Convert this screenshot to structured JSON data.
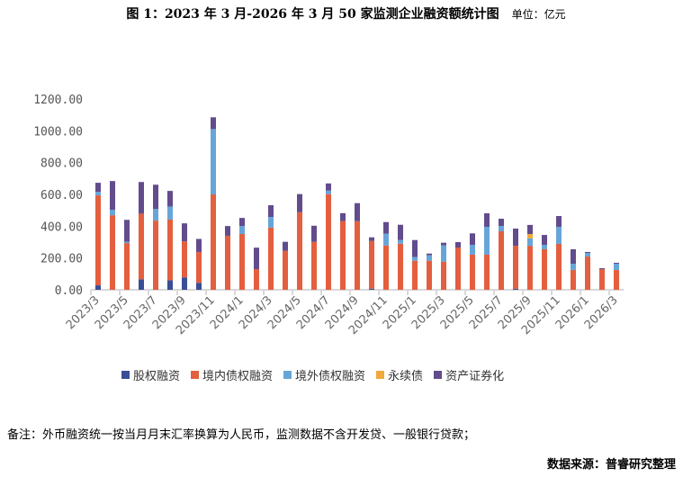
{
  "chart_data": {
    "type": "bar",
    "stacked": true,
    "title": "图 1：2023 年 3 月-2026 年 3 月 50 家监测企业融资额统计图",
    "unit": "单位：亿元",
    "xlabel": "",
    "ylabel": "",
    "ylim": [
      0,
      1200
    ],
    "yticks": [
      "0.00",
      "200.00",
      "400.00",
      "600.00",
      "800.00",
      "1000.00",
      "1200.00"
    ],
    "grid": false,
    "legend_position": "bottom",
    "categories": [
      "2023/3",
      "2023/4",
      "2023/5",
      "2023/6",
      "2023/7",
      "2023/8",
      "2023/9",
      "2023/10",
      "2023/11",
      "2023/12",
      "2024/1",
      "2024/2",
      "2024/3",
      "2024/4",
      "2024/5",
      "2024/6",
      "2024/7",
      "2024/8",
      "2024/9",
      "2024/10",
      "2024/11",
      "2024/12",
      "2025/1",
      "2025/2",
      "2025/3",
      "2025/4",
      "2025/5",
      "2025/6",
      "2025/7",
      "2025/8",
      "2025/9",
      "2025/10",
      "2025/11",
      "2025/12",
      "2026/1",
      "2026/2",
      "2026/3"
    ],
    "xtick_labels": [
      "2023/3",
      "2023/5",
      "2023/7",
      "2023/9",
      "2023/11",
      "2024/1",
      "2024/3",
      "2024/5",
      "2024/7",
      "2024/9",
      "2024/11",
      "2025/1",
      "2025/3",
      "2025/5",
      "2025/7",
      "2025/9",
      "2025/11",
      "2026/1",
      "2026/3"
    ],
    "series": [
      {
        "name": "股权融资",
        "color": "#3a4e96",
        "values": [
          28,
          0,
          0,
          66,
          0,
          60,
          78,
          44,
          0,
          0,
          0,
          0,
          0,
          0,
          0,
          0,
          0,
          0,
          0,
          7,
          0,
          0,
          0,
          0,
          0,
          0,
          0,
          0,
          0,
          6,
          0,
          0,
          0,
          0,
          0,
          0,
          0
        ]
      },
      {
        "name": "境内债权融资",
        "color": "#e35f3f",
        "values": [
          566,
          469,
          294,
          413,
          435,
          382,
          227,
          194,
          600,
          340,
          351,
          130,
          391,
          245,
          488,
          302,
          602,
          432,
          432,
          300,
          279,
          290,
          183,
          183,
          177,
          266,
          221,
          221,
          368,
          271,
          277,
          255,
          289,
          125,
          209,
          130,
          125
        ]
      },
      {
        "name": "境外债权融资",
        "color": "#67a5d9",
        "values": [
          22,
          34,
          9,
          0,
          73,
          82,
          0,
          0,
          411,
          0,
          50,
          0,
          67,
          0,
          0,
          0,
          22,
          0,
          0,
          0,
          74,
          23,
          23,
          34,
          102,
          0,
          62,
          175,
          34,
          0,
          46,
          28,
          107,
          39,
          23,
          0,
          39
        ]
      },
      {
        "name": "永续债",
        "color": "#f0a93b",
        "values": [
          0,
          0,
          0,
          0,
          0,
          0,
          0,
          0,
          0,
          0,
          0,
          0,
          0,
          0,
          0,
          0,
          0,
          0,
          0,
          0,
          0,
          0,
          0,
          0,
          0,
          0,
          0,
          0,
          0,
          0,
          28,
          0,
          0,
          0,
          0,
          0,
          0
        ]
      },
      {
        "name": "资产证券化",
        "color": "#624c8c",
        "values": [
          57,
          181,
          137,
          199,
          153,
          98,
          113,
          82,
          74,
          61,
          51,
          135,
          74,
          57,
          114,
          101,
          45,
          50,
          113,
          23,
          73,
          96,
          107,
          11,
          17,
          34,
          72,
          85,
          45,
          108,
          57,
          62,
          68,
          91,
          6,
          6,
          6
        ]
      }
    ]
  },
  "footer": {
    "note": "备注：外币融资统一按当月月末汇率换算为人民币，监测数据不含开发贷、一般银行贷款；",
    "source": "数据来源：普睿研究整理"
  }
}
